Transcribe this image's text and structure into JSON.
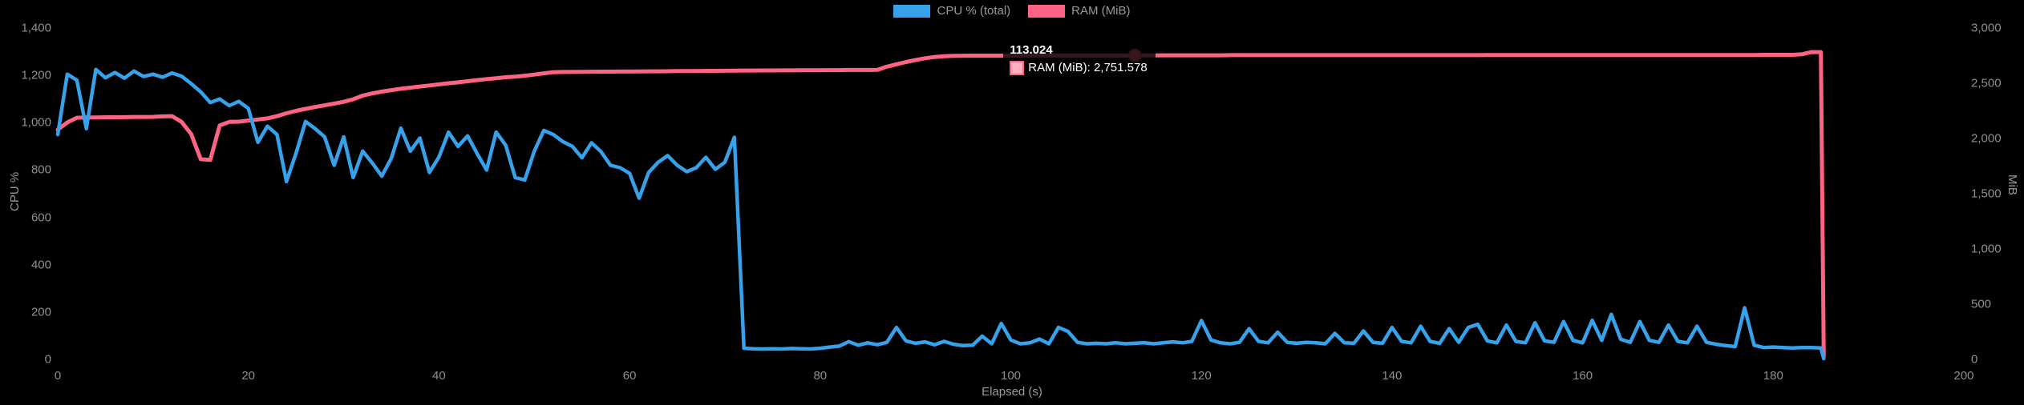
{
  "chart_data": {
    "type": "line",
    "title": "",
    "xlabel": "Elapsed (s)",
    "ylabel_left": "CPU %",
    "ylabel_right": "MiB",
    "background": "#000000",
    "grid": false,
    "legend_position": "top",
    "xlim": [
      0,
      200
    ],
    "ylim_left": [
      0,
      1400
    ],
    "ylim_right": [
      0,
      3000
    ],
    "x_tick_labels": [
      "0",
      "20",
      "40",
      "60",
      "80",
      "100",
      "120",
      "140",
      "160",
      "180",
      "200"
    ],
    "x_tick_values": [
      0,
      20,
      40,
      60,
      80,
      100,
      120,
      140,
      160,
      180,
      200
    ],
    "left_tick_labels": [
      "1,400",
      "1,200",
      "1,000",
      "800",
      "600",
      "400",
      "200",
      "0"
    ],
    "left_tick_values": [
      1400,
      1200,
      1000,
      800,
      600,
      400,
      200,
      0
    ],
    "right_tick_labels": [
      "3,000",
      "2,500",
      "2,000",
      "1,500",
      "1,000",
      "500",
      "0"
    ],
    "right_tick_values": [
      3000,
      2500,
      2000,
      1500,
      1000,
      500,
      0
    ],
    "legend": [
      {
        "label": "CPU % (total)",
        "color": "#36a2eb"
      },
      {
        "label": "RAM (MiB)",
        "color": "#ff6384"
      }
    ],
    "x": [
      0,
      1,
      2,
      3,
      4,
      5,
      6,
      7,
      8,
      9,
      10,
      11,
      12,
      13,
      14,
      15,
      16,
      17,
      18,
      19,
      20,
      21,
      22,
      23,
      24,
      25,
      26,
      27,
      28,
      29,
      30,
      31,
      32,
      33,
      34,
      35,
      36,
      37,
      38,
      39,
      40,
      41,
      42,
      43,
      44,
      45,
      46,
      47,
      48,
      49,
      50,
      51,
      52,
      53,
      54,
      55,
      56,
      57,
      58,
      59,
      60,
      61,
      62,
      63,
      64,
      65,
      66,
      67,
      68,
      69,
      70,
      71,
      72,
      73,
      74,
      75,
      76,
      77,
      78,
      79,
      80,
      81,
      82,
      83,
      84,
      85,
      86,
      87,
      88,
      89,
      90,
      91,
      92,
      93,
      94,
      95,
      96,
      97,
      98,
      99,
      100,
      101,
      102,
      103,
      104,
      105,
      106,
      107,
      108,
      109,
      110,
      111,
      112,
      113,
      114,
      115,
      116,
      117,
      118,
      119,
      120,
      121,
      122,
      123,
      124,
      125,
      126,
      127,
      128,
      129,
      130,
      131,
      132,
      133,
      134,
      135,
      136,
      137,
      138,
      139,
      140,
      141,
      142,
      143,
      144,
      145,
      146,
      147,
      148,
      149,
      150,
      151,
      152,
      153,
      154,
      155,
      156,
      157,
      158,
      159,
      160,
      161,
      162,
      163,
      164,
      165,
      166,
      167,
      168,
      169,
      170,
      171,
      172,
      173,
      174,
      175,
      176,
      177,
      178,
      179,
      180,
      181,
      182,
      183,
      184,
      185,
      185.3
    ],
    "series": [
      {
        "name": "CPU % (total)",
        "axis": "left",
        "color": "#36a2eb",
        "values": [
          950,
          1205,
          1180,
          975,
          1225,
          1190,
          1212,
          1188,
          1218,
          1195,
          1205,
          1192,
          1210,
          1196,
          1165,
          1130,
          1085,
          1100,
          1072,
          1090,
          1060,
          917,
          985,
          950,
          751,
          870,
          1005,
          975,
          940,
          820,
          940,
          768,
          880,
          830,
          774,
          850,
          977,
          880,
          935,
          790,
          855,
          960,
          900,
          944,
          870,
          800,
          960,
          905,
          768,
          758,
          880,
          967,
          950,
          920,
          900,
          852,
          915,
          878,
          820,
          810,
          786,
          681,
          790,
          833,
          861,
          820,
          793,
          810,
          854,
          803,
          833,
          938,
          47,
          45,
          44,
          45,
          44,
          46,
          45,
          44,
          47,
          52,
          56,
          75,
          60,
          70,
          62,
          72,
          135,
          78,
          68,
          74,
          62,
          76,
          64,
          58,
          60,
          98,
          66,
          152,
          82,
          66,
          70,
          86,
          66,
          135,
          118,
          72,
          66,
          68,
          66,
          70,
          66,
          68,
          70,
          66,
          70,
          74,
          70,
          76,
          164,
          82,
          70,
          66,
          72,
          130,
          76,
          70,
          115,
          72,
          68,
          72,
          70,
          66,
          110,
          70,
          68,
          120,
          72,
          68,
          135,
          76,
          70,
          140,
          76,
          68,
          130,
          72,
          135,
          148,
          78,
          70,
          145,
          76,
          70,
          155,
          78,
          72,
          160,
          80,
          70,
          165,
          80,
          190,
          85,
          72,
          160,
          80,
          72,
          145,
          76,
          70,
          140,
          72,
          64,
          58,
          54,
          218,
          60,
          50,
          52,
          50,
          48,
          50,
          50,
          48,
          3
        ]
      },
      {
        "name": "RAM (MiB)",
        "axis": "right",
        "color": "#ff6384",
        "values": [
          2080,
          2145,
          2188,
          2190,
          2190,
          2192,
          2192,
          2193,
          2195,
          2195,
          2196,
          2200,
          2202,
          2150,
          2040,
          1812,
          1806,
          2118,
          2150,
          2152,
          2162,
          2172,
          2182,
          2202,
          2228,
          2250,
          2268,
          2285,
          2300,
          2316,
          2332,
          2355,
          2388,
          2408,
          2424,
          2438,
          2450,
          2460,
          2470,
          2480,
          2490,
          2500,
          2508,
          2518,
          2528,
          2538,
          2546,
          2554,
          2560,
          2568,
          2578,
          2590,
          2600,
          2602,
          2602,
          2603,
          2604,
          2605,
          2605,
          2606,
          2606,
          2607,
          2608,
          2608,
          2609,
          2610,
          2610,
          2611,
          2612,
          2612,
          2613,
          2614,
          2615,
          2615,
          2616,
          2616,
          2617,
          2617,
          2618,
          2618,
          2618,
          2619,
          2619,
          2620,
          2620,
          2620,
          2622,
          2650,
          2672,
          2692,
          2710,
          2726,
          2738,
          2745,
          2748,
          2749,
          2750,
          2750,
          2750,
          2750,
          2750,
          2750,
          2751,
          2751,
          2751,
          2751,
          2751,
          2751,
          2751,
          2751,
          2751,
          2751,
          2751,
          2751.578,
          2752,
          2752,
          2753,
          2753,
          2753,
          2753,
          2753,
          2753,
          2753,
          2754,
          2754,
          2754,
          2754,
          2754,
          2754,
          2754,
          2754,
          2754,
          2754,
          2754,
          2754,
          2754,
          2754,
          2754,
          2754,
          2754,
          2754,
          2754,
          2754,
          2754,
          2754,
          2754,
          2754,
          2754,
          2754,
          2754,
          2755,
          2755,
          2755,
          2755,
          2755,
          2755,
          2755,
          2755,
          2755,
          2755,
          2756,
          2756,
          2756,
          2756,
          2756,
          2756,
          2756,
          2756,
          2756,
          2756,
          2756,
          2756,
          2756,
          2756,
          2756,
          2756,
          2756,
          2756,
          2756,
          2757,
          2757,
          2757,
          2757,
          2762,
          2782,
          2782,
          28
        ]
      }
    ]
  },
  "tooltip": {
    "title": "113.024",
    "body": "RAM (MiB): 2,751.578",
    "x": 113.024,
    "value": 2751.578,
    "series": "RAM (MiB)",
    "swatch_fill": "#ffb1c1",
    "swatch_border": "#ff6384"
  }
}
